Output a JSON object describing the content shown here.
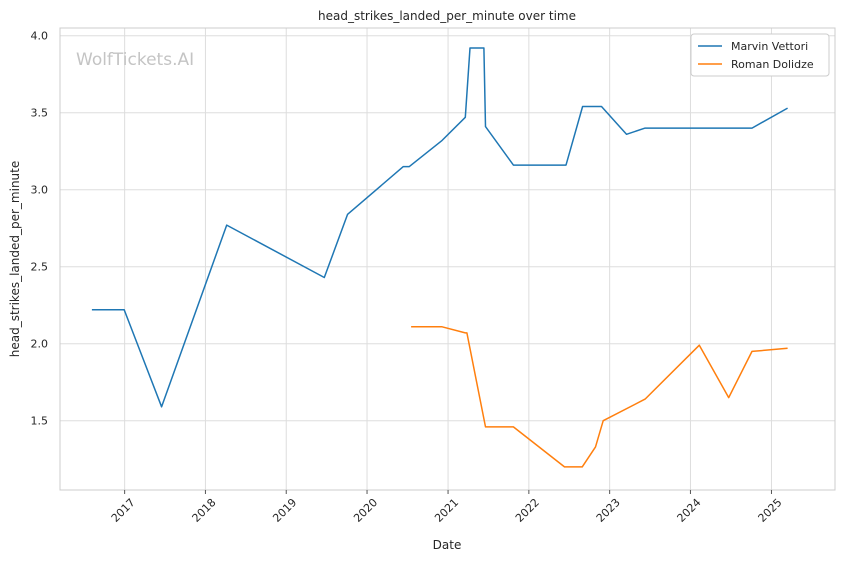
{
  "chart_data": {
    "type": "line",
    "title": "head_strikes_landed_per_minute over time",
    "xlabel": "Date",
    "ylabel": "head_strikes_landed_per_minute",
    "watermark": "WolfTickets.AI",
    "xlim": [
      "2016-03-15",
      "2025-10-15"
    ],
    "ylim": [
      1.05,
      4.05
    ],
    "x_ticks": [
      "2017",
      "2018",
      "2019",
      "2020",
      "2021",
      "2022",
      "2023",
      "2024",
      "2025"
    ],
    "y_ticks": [
      "1.5",
      "2.0",
      "2.5",
      "3.0",
      "3.5",
      "4.0"
    ],
    "grid": true,
    "legend_position": "top-right",
    "series": [
      {
        "name": "Marvin Vettori",
        "color": "#1f77b4",
        "points": [
          [
            "2016-08-06",
            2.22
          ],
          [
            "2016-12-30",
            2.22
          ],
          [
            "2017-06-17",
            1.59
          ],
          [
            "2018-04-07",
            2.77
          ],
          [
            "2019-06-22",
            2.43
          ],
          [
            "2019-10-05",
            2.84
          ],
          [
            "2020-06-13",
            3.15
          ],
          [
            "2020-07-10",
            3.15
          ],
          [
            "2020-12-05",
            3.32
          ],
          [
            "2021-03-20",
            3.47
          ],
          [
            "2021-04-10",
            3.92
          ],
          [
            "2021-06-12",
            3.92
          ],
          [
            "2021-06-19",
            3.41
          ],
          [
            "2021-10-23",
            3.16
          ],
          [
            "2022-06-18",
            3.16
          ],
          [
            "2022-09-01",
            3.54
          ],
          [
            "2022-11-25",
            3.54
          ],
          [
            "2023-03-18",
            3.36
          ],
          [
            "2023-06-10",
            3.4
          ],
          [
            "2024-10-05",
            3.4
          ],
          [
            "2025-03-15",
            3.53
          ]
        ]
      },
      {
        "name": "Roman Dolidze",
        "color": "#ff7f0e",
        "points": [
          [
            "2020-07-18",
            2.11
          ],
          [
            "2020-12-05",
            2.11
          ],
          [
            "2021-03-20",
            2.07
          ],
          [
            "2021-03-27",
            2.07
          ],
          [
            "2021-06-19",
            1.46
          ],
          [
            "2021-10-23",
            1.46
          ],
          [
            "2022-06-11",
            1.2
          ],
          [
            "2022-08-30",
            1.2
          ],
          [
            "2022-10-29",
            1.33
          ],
          [
            "2022-12-03",
            1.5
          ],
          [
            "2023-06-10",
            1.64
          ],
          [
            "2024-02-10",
            1.99
          ],
          [
            "2024-06-22",
            1.65
          ],
          [
            "2024-10-05",
            1.95
          ],
          [
            "2025-03-15",
            1.97
          ]
        ]
      }
    ]
  }
}
